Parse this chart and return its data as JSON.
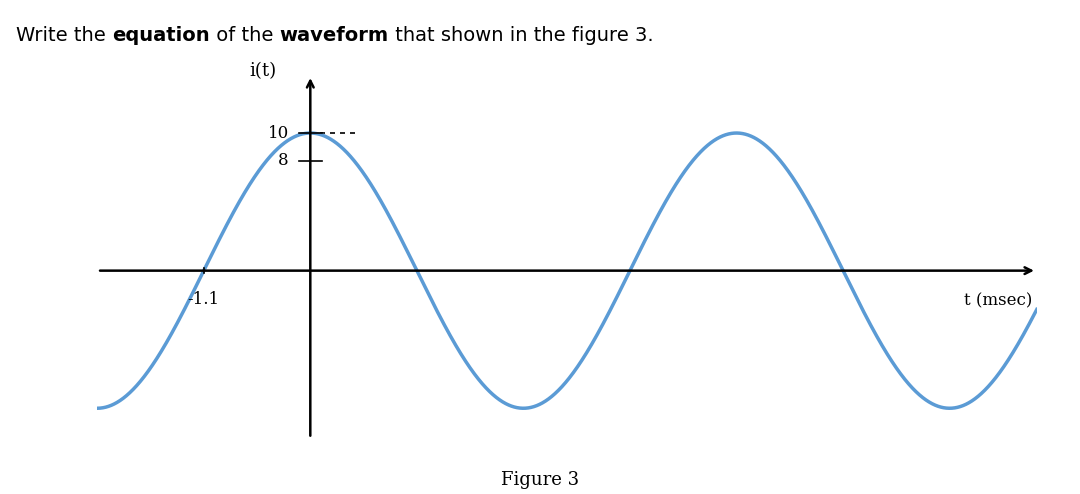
{
  "ylabel": "i(t)",
  "xlabel": "t (msec)",
  "figure_label": "Figure 3",
  "amplitude": 10,
  "phase_shift_ms": -1.1,
  "period_ms": 4.4,
  "y_ticks": [
    8,
    10
  ],
  "x_cross": -1.1,
  "wave_color": "#5b9bd5",
  "wave_linewidth": 2.5,
  "background_color": "#ffffff",
  "xmin": -2.2,
  "xmax": 7.5,
  "ymin": -13,
  "ymax": 15,
  "title_parts": [
    {
      "text": "Write the ",
      "bold": false
    },
    {
      "text": "equation",
      "bold": true
    },
    {
      "text": " of the ",
      "bold": false
    },
    {
      "text": "waveform",
      "bold": true
    },
    {
      "text": " that shown in the figure 3.",
      "bold": false
    }
  ],
  "title_fontsize": 14,
  "dotted_line_color": "black",
  "axis_color": "black",
  "axis_lw": 1.8
}
